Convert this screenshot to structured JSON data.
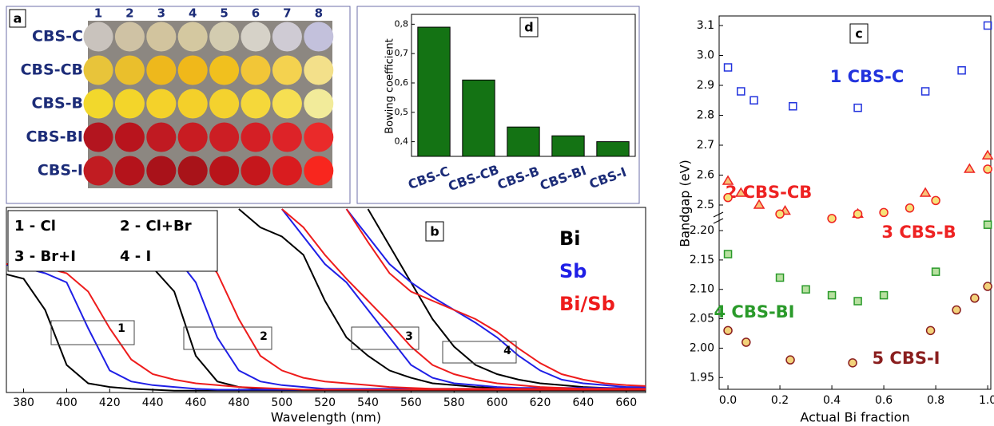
{
  "photo": {
    "label": "a",
    "columns": [
      "1",
      "2",
      "3",
      "4",
      "5",
      "6",
      "7",
      "8"
    ],
    "rows": [
      {
        "label": "CBS-C",
        "colors": [
          "#c9c3bd",
          "#cfc2a4",
          "#d2c49e",
          "#d4c8a0",
          "#d3ccb0",
          "#d6d2c8",
          "#cfcbd4",
          "#c3c1dc"
        ]
      },
      {
        "label": "CBS-CB",
        "colors": [
          "#e8c43a",
          "#eabf2c",
          "#eeb81c",
          "#f0b81a",
          "#f1c01e",
          "#f2c637",
          "#f4d24f",
          "#f3e08a"
        ]
      },
      {
        "label": "CBS-B",
        "colors": [
          "#f2d82c",
          "#f3d52a",
          "#f4d22a",
          "#f4d02a",
          "#f4d22e",
          "#f5d83a",
          "#f6df52",
          "#f2eb9a"
        ]
      },
      {
        "label": "CBS-BI",
        "colors": [
          "#b3151f",
          "#b8141d",
          "#c01a22",
          "#c81c22",
          "#cc1e24",
          "#d41f25",
          "#dd2328",
          "#ea2a2a"
        ]
      },
      {
        "label": "CBS-I",
        "colors": [
          "#c11c22",
          "#b4131b",
          "#a9121a",
          "#a81319",
          "#b8141a",
          "#c5171c",
          "#d91c1f",
          "#f8261e"
        ]
      }
    ]
  },
  "chart_data": [
    {
      "type": "line",
      "title": "b",
      "xlabel": "Wavelength (nm)",
      "x": [
        370,
        380,
        390,
        400,
        410,
        420,
        430,
        440,
        450,
        460,
        470,
        480,
        490,
        500,
        510,
        520,
        530,
        540,
        550,
        560,
        570,
        580,
        590,
        600,
        610,
        620,
        630,
        640,
        650,
        660,
        670
      ],
      "xlim": [
        372,
        669
      ],
      "xticks": [
        380,
        400,
        420,
        440,
        460,
        480,
        500,
        520,
        540,
        560,
        580,
        600,
        620,
        640,
        660
      ],
      "ylim": [
        0,
        1
      ],
      "key": [
        "1 - Cl",
        "2 - Cl+Br",
        "3 - Br+I",
        "4 - I"
      ],
      "annotations": [
        "1",
        "2",
        "3",
        "4"
      ],
      "series": [
        {
          "name": "Bi",
          "color": "#000000",
          "curves": [
            [
              0.65,
              0.62,
              0.45,
              0.15,
              0.05,
              0.03,
              0.02,
              0.015,
              0.01,
              0.01,
              0.01,
              0.01,
              0.01,
              0.01,
              0.01,
              0.01,
              0.01,
              0.01,
              0.01,
              0.01,
              0.01,
              0.01,
              0.01,
              0.01,
              0.01,
              0.01,
              0.01,
              0.01,
              0.01,
              0.01,
              0.01
            ],
            [
              null,
              null,
              null,
              null,
              null,
              null,
              0.7,
              0.68,
              0.55,
              0.2,
              0.06,
              0.03,
              0.02,
              0.015,
              0.015,
              0.015,
              0.015,
              0.015,
              0.015,
              0.015,
              0.015,
              0.015,
              0.015,
              0.015,
              0.015,
              0.015,
              0.015,
              0.015,
              0.015,
              0.015,
              0.015
            ],
            [
              null,
              null,
              null,
              null,
              null,
              null,
              null,
              null,
              null,
              null,
              null,
              1,
              0.9,
              0.85,
              0.75,
              0.5,
              0.3,
              0.2,
              0.12,
              0.08,
              0.05,
              0.04,
              0.03,
              0.025,
              0.02,
              0.02,
              0.02,
              0.02,
              0.02,
              0.02,
              0.02
            ],
            [
              null,
              null,
              null,
              null,
              null,
              null,
              null,
              null,
              null,
              null,
              null,
              null,
              null,
              null,
              null,
              null,
              null,
              1,
              0.8,
              0.6,
              0.4,
              0.25,
              0.15,
              0.1,
              0.07,
              0.05,
              0.04,
              0.03,
              0.025,
              0.02,
              0.02
            ]
          ]
        },
        {
          "name": "Sb",
          "color": "#1f1fe6",
          "curves": [
            [
              0.7,
              0.68,
              0.65,
              0.6,
              0.35,
              0.12,
              0.06,
              0.04,
              0.03,
              0.02,
              0.015,
              0.015,
              0.015,
              0.015,
              0.015,
              0.015,
              0.015,
              0.015,
              0.015,
              0.015,
              0.015,
              0.015,
              0.015,
              0.015,
              0.015,
              0.015,
              0.015,
              0.015,
              0.015,
              0.015,
              0.015
            ],
            [
              null,
              null,
              null,
              null,
              null,
              null,
              null,
              0.85,
              0.75,
              0.6,
              0.3,
              0.12,
              0.06,
              0.04,
              0.03,
              0.02,
              0.02,
              0.02,
              0.02,
              0.02,
              0.02,
              0.02,
              0.02,
              0.02,
              0.02,
              0.02,
              0.02,
              0.02,
              0.02,
              0.02,
              0.02
            ],
            [
              null,
              null,
              null,
              null,
              null,
              null,
              null,
              null,
              null,
              null,
              null,
              null,
              null,
              1,
              0.85,
              0.7,
              0.6,
              0.45,
              0.3,
              0.15,
              0.08,
              0.05,
              0.04,
              0.03,
              0.025,
              0.025,
              0.025,
              0.025,
              0.025,
              0.025,
              0.025
            ],
            [
              null,
              null,
              null,
              null,
              null,
              null,
              null,
              null,
              null,
              null,
              null,
              null,
              null,
              null,
              null,
              null,
              1,
              0.85,
              0.7,
              0.6,
              0.52,
              0.45,
              0.38,
              0.3,
              0.2,
              0.12,
              0.07,
              0.05,
              0.04,
              0.03,
              0.03
            ]
          ]
        },
        {
          "name": "Bi/Sb",
          "color": "#ee1c1c",
          "curves": [
            [
              0.7,
              0.7,
              0.68,
              0.65,
              0.55,
              0.35,
              0.18,
              0.1,
              0.07,
              0.05,
              0.04,
              0.03,
              0.025,
              0.02,
              0.015,
              0.015,
              0.015,
              0.015,
              0.015,
              0.015,
              0.015,
              0.015,
              0.015,
              0.015,
              0.015,
              0.015,
              0.015,
              0.015,
              0.015,
              0.015,
              0.015
            ],
            [
              null,
              null,
              null,
              null,
              null,
              null,
              null,
              0.95,
              0.85,
              0.8,
              0.65,
              0.4,
              0.2,
              0.12,
              0.08,
              0.06,
              0.05,
              0.04,
              0.03,
              0.025,
              0.02,
              0.02,
              0.02,
              0.02,
              0.02,
              0.02,
              0.02,
              0.02,
              0.02,
              0.02,
              0.02
            ],
            [
              null,
              null,
              null,
              null,
              null,
              null,
              null,
              null,
              null,
              null,
              null,
              null,
              null,
              1,
              0.9,
              0.75,
              0.62,
              0.5,
              0.38,
              0.25,
              0.15,
              0.1,
              0.07,
              0.05,
              0.04,
              0.03,
              0.025,
              0.02,
              0.02,
              0.02,
              0.02
            ],
            [
              null,
              null,
              null,
              null,
              null,
              null,
              null,
              null,
              null,
              null,
              null,
              null,
              null,
              null,
              null,
              null,
              1,
              0.82,
              0.65,
              0.55,
              0.5,
              0.45,
              0.4,
              0.33,
              0.24,
              0.16,
              0.1,
              0.07,
              0.05,
              0.04,
              0.035
            ]
          ]
        }
      ]
    },
    {
      "type": "bar",
      "title": "d",
      "ylabel": "Bowing coefficient",
      "color": "#147314",
      "categories": [
        "CBS-C",
        "CBS-CB",
        "CBS-B",
        "CBS-BI",
        "CBS-I"
      ],
      "values": [
        0.79,
        0.61,
        0.45,
        0.42,
        0.4
      ],
      "ylim": [
        0.35,
        0.82
      ],
      "yticks": [
        {
          "value": 0.4,
          "label": "0,4"
        },
        {
          "value": 0.5,
          "label": "0,5"
        },
        {
          "value": 0.6,
          "label": "0,6"
        },
        {
          "value": 0.7,
          "label": "0,7"
        },
        {
          "value": 0.8,
          "label": "0,8"
        }
      ]
    },
    {
      "type": "scatter",
      "title": "c",
      "ylabel": "Bandgap (eV)",
      "xlim": [
        -0.034,
        1.012
      ],
      "ylim": [
        2.452,
        3.132
      ],
      "yticks": [
        2.5,
        2.6,
        2.7,
        2.8,
        2.9,
        {
          "value": 3.0,
          "label": "3.0"
        },
        3.1
      ],
      "series": [
        {
          "name": "1 CBS-C",
          "color": "#2233dd",
          "fill": "none",
          "marker": "square",
          "x": [
            0,
            0.05,
            0.1,
            0.25,
            0.5,
            0.76,
            0.9,
            1.0
          ],
          "values": [
            2.96,
            2.88,
            2.85,
            2.83,
            2.825,
            2.88,
            2.95,
            3.1
          ]
        },
        {
          "name": "2 CBS-CB",
          "color": "#ee2222",
          "fill": "#f7c27a",
          "marker": "triangle",
          "x": [
            0,
            0.05,
            0.12,
            0.22,
            0.5,
            0.76,
            0.93,
            1.0
          ],
          "values": [
            2.58,
            2.54,
            2.5,
            2.48,
            2.47,
            2.54,
            2.62,
            2.665
          ]
        },
        {
          "name": "3 CBS-B",
          "color": "#ee2222",
          "fill": "#f6e27a",
          "marker": "circle",
          "x": [
            0,
            0.2,
            0.4,
            0.5,
            0.6,
            0.7,
            0.8,
            1.0
          ],
          "values": [
            2.525,
            2.47,
            2.455,
            2.47,
            2.475,
            2.49,
            2.515,
            2.62
          ]
        }
      ]
    },
    {
      "type": "scatter",
      "xlabel": "Actual Bi fraction",
      "xlim": [
        -0.034,
        1.012
      ],
      "ylim": [
        1.93,
        2.215
      ],
      "xticks": [
        {
          "value": 0,
          "label": "0.0"
        },
        0.2,
        0.4,
        0.6,
        0.8,
        {
          "value": 1.0,
          "label": "1.0"
        }
      ],
      "yticks": [
        1.95,
        {
          "value": 2.0,
          "label": "2.00"
        },
        2.05,
        {
          "value": 2.1,
          "label": "2.10"
        },
        2.15,
        {
          "value": 2.2,
          "label": "2.20"
        }
      ],
      "series": [
        {
          "name": "4 CBS-BI",
          "color": "#2a9a2a",
          "fill": "#b8e0a0",
          "marker": "square",
          "x": [
            0,
            0.2,
            0.3,
            0.4,
            0.5,
            0.6,
            0.8,
            1.0
          ],
          "values": [
            2.16,
            2.12,
            2.1,
            2.09,
            2.08,
            2.09,
            2.13,
            2.21
          ]
        },
        {
          "name": "5 CBS-I",
          "color": "#8a1e1e",
          "fill": "#f2d27a",
          "marker": "circle",
          "x": [
            0,
            0.07,
            0.24,
            0.48,
            0.78,
            0.88,
            0.95,
            1.0
          ],
          "values": [
            2.03,
            2.01,
            1.98,
            1.975,
            2.03,
            2.065,
            2.085,
            2.105
          ]
        }
      ]
    }
  ]
}
